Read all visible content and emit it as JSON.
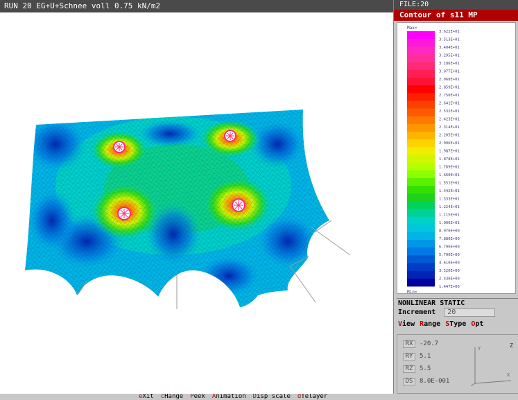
{
  "title_bar": "RUN 20 EG+U+Schnee voll 0.75 kN/m2",
  "side_panel": {
    "file_label": "FILE:20",
    "contour_title": "Contour of s11 MP",
    "legend": {
      "max_label": "Max=",
      "min_label": "Min=",
      "max_value": "3.622E+01",
      "min_value": "1.447E+00",
      "values": [
        "3.622E+01",
        "3.513E+01",
        "3.404E+01",
        "3.295E+01",
        "3.186E+01",
        "3.077E+01",
        "2.968E+01",
        "2.859E+01",
        "2.750E+01",
        "2.641E+01",
        "2.532E+01",
        "2.423E+01",
        "2.314E+01",
        "2.205E+01",
        "2.096E+01",
        "1.987E+01",
        "1.878E+01",
        "1.769E+01",
        "1.660E+01",
        "1.551E+01",
        "1.442E+01",
        "1.333E+01",
        "1.224E+01",
        "1.115E+01",
        "1.006E+01",
        "8.970E+00",
        "7.880E+00",
        "6.790E+00",
        "5.700E+00",
        "4.610E+00",
        "3.520E+00",
        "2.430E+00",
        "1.447E+00"
      ],
      "colors": [
        "#ff00ff",
        "#ff19d8",
        "#ff28c0",
        "#ff2f9a",
        "#ff2a78",
        "#ff1f55",
        "#ff1235",
        "#ff0000",
        "#ff2000",
        "#ff4000",
        "#ff5a00",
        "#ff7800",
        "#ff9600",
        "#ffb400",
        "#ffd200",
        "#f0ee00",
        "#d2f500",
        "#b4ff00",
        "#8cff00",
        "#5af000",
        "#34e000",
        "#1ed21e",
        "#00d25a",
        "#00d296",
        "#00d2c8",
        "#00c8dc",
        "#00b4e6",
        "#0096e6",
        "#0078e6",
        "#005ad2",
        "#003cc8",
        "#0024b4",
        "#0000a0"
      ]
    },
    "analysis_type": "NONLINEAR STATIC",
    "increment_label": "Increment",
    "increment_value": "20",
    "menu": [
      {
        "hot": "V",
        "rest": "iew"
      },
      {
        "hot": "R",
        "rest": "ange"
      },
      {
        "hot": "S",
        "rest": "Type"
      },
      {
        "hot": "O",
        "rest": "pt"
      }
    ],
    "coords": [
      {
        "key": "RX",
        "value": "-20.7"
      },
      {
        "key": "RY",
        "value": "5.1"
      },
      {
        "key": "RZ",
        "value": "5.5"
      },
      {
        "key": "DS",
        "value": "8.0E-001"
      }
    ],
    "axes": {
      "y": "Y",
      "z": "Z",
      "x": "X"
    }
  },
  "bottom_menu": [
    {
      "hot": "e",
      "rest": "Xit"
    },
    {
      "hot": "c",
      "rest": "Hange"
    },
    {
      "hot": "P",
      "rest": "eek"
    },
    {
      "hot": "A",
      "rest": "nimation"
    },
    {
      "hot": "D",
      "rest": "isp scale"
    },
    {
      "hot": "d",
      "rest": "Telayer"
    }
  ]
}
